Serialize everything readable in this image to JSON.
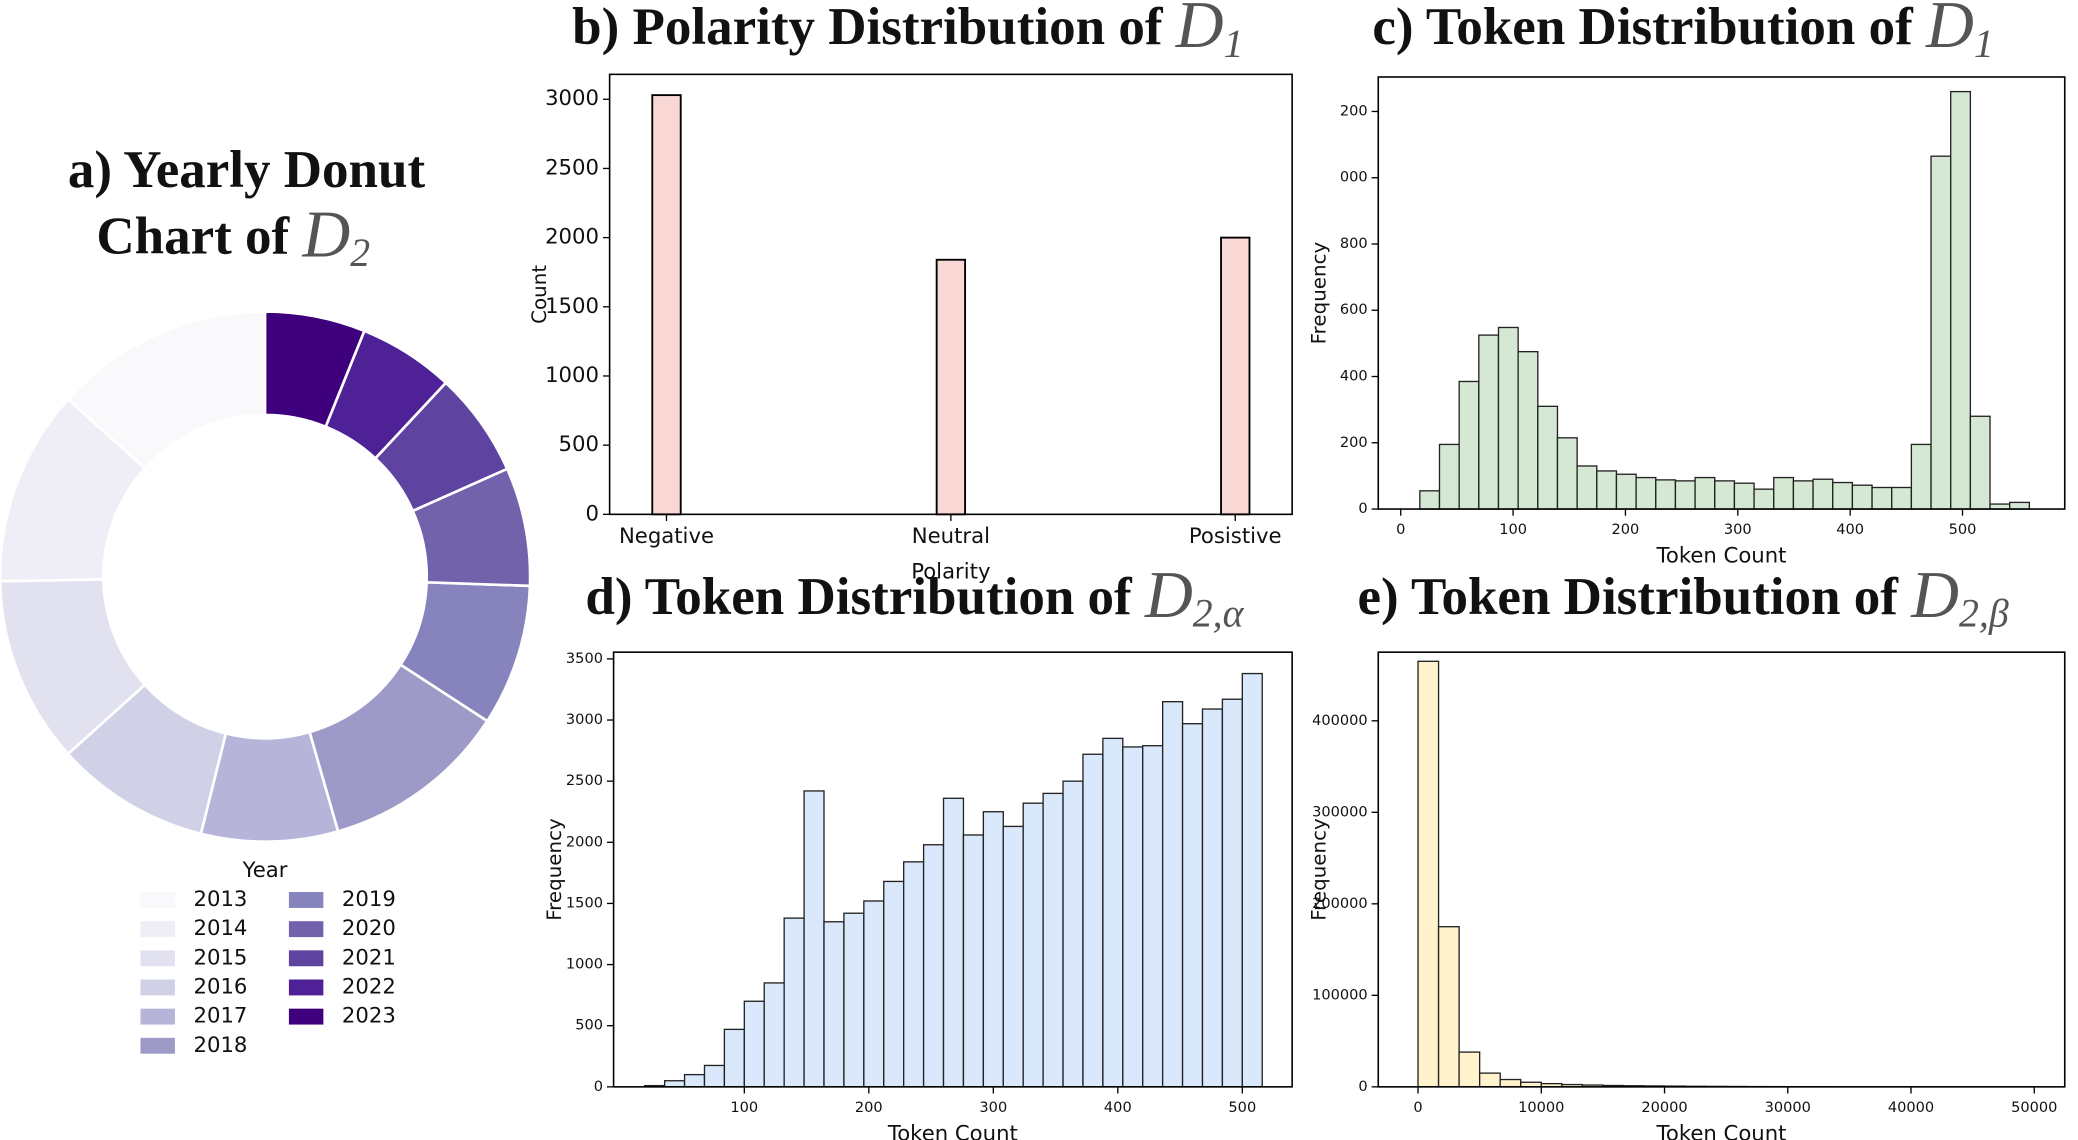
{
  "chart_data": [
    {
      "type": "pie",
      "title": [
        "a)  Yearly Donut",
        "Chart of"
      ],
      "dataset": "D",
      "title_subscript": "2",
      "categories": [
        "2013",
        "2014",
        "2015",
        "2016",
        "2017",
        "2018",
        "2019",
        "2020",
        "2021",
        "2022",
        "2023"
      ],
      "values": [
        48,
        43,
        41,
        34,
        30,
        41,
        31,
        26,
        23,
        21,
        22
      ],
      "colors": [
        "#f9f8fb",
        "#efedf5",
        "#e2e1ef",
        "#d0d1e6",
        "#b6b4d9",
        "#9e9ac8",
        "#8683bd",
        "#7261ab",
        "#5f43a0",
        "#4f2196",
        "#3f007d"
      ],
      "legend_title": "Year"
    },
    {
      "type": "bar",
      "title": "b) Polarity Distribution of",
      "dataset": "D",
      "title_subscript": "1",
      "categories": [
        "Negative",
        "Neutral",
        "Posistive"
      ],
      "values": [
        3030,
        1840,
        2000
      ],
      "color": "#f8d7d5",
      "xlabel": "Polarity",
      "ylabel": "Count",
      "ylim": [
        0,
        3180
      ],
      "yticks": [
        0,
        500,
        1000,
        1500,
        2000,
        2500,
        3000
      ]
    },
    {
      "type": "histogram",
      "title": "c) Token Distribution of",
      "dataset": "D",
      "title_subscript": "1",
      "bins": [
        17,
        34.5,
        52,
        69.5,
        87,
        104.5,
        122,
        139.5,
        157,
        174.5,
        192,
        209.5,
        227,
        244.5,
        262,
        279.5,
        297,
        314.5,
        332,
        349.5,
        367,
        384.5,
        402,
        419.5,
        437,
        454.5,
        472,
        489.5,
        507,
        524.5,
        542,
        559.5
      ],
      "values": [
        55,
        195,
        385,
        525,
        548,
        475,
        310,
        215,
        130,
        115,
        105,
        95,
        88,
        85,
        95,
        85,
        78,
        60,
        95,
        85,
        90,
        80,
        72,
        65,
        65,
        195,
        1065,
        1260,
        280,
        15,
        20
      ],
      "color": "#d5e8d4",
      "xlabel": "Token Count",
      "ylabel": "Frequency",
      "xlim": [
        -20,
        591
      ],
      "xticks": [
        0,
        100,
        200,
        300,
        400,
        500
      ],
      "ylim": [
        0,
        1304
      ],
      "yticks": [
        0,
        200,
        400,
        600,
        800,
        {
          "value": 1000,
          "label": "000"
        },
        {
          "value": 1200,
          "label": "200"
        }
      ]
    },
    {
      "type": "histogram",
      "title": "d) Token Distribution of",
      "dataset": "D",
      "title_subscript": "2,α",
      "bins": [
        20,
        36,
        52,
        68,
        84,
        100,
        116,
        132,
        148,
        164,
        180,
        196,
        212,
        228,
        244,
        260,
        276,
        292,
        308,
        324,
        340,
        356,
        372,
        388,
        404,
        420,
        436,
        452,
        468,
        484,
        500,
        516
      ],
      "values": [
        10,
        50,
        100,
        175,
        470,
        700,
        850,
        1380,
        2420,
        1350,
        1420,
        1520,
        1680,
        1840,
        1980,
        2360,
        2060,
        2250,
        2130,
        2320,
        2400,
        2500,
        2720,
        2850,
        2780,
        2790,
        3150,
        2970,
        3090,
        3170,
        3380
      ],
      "color": "#dae8fc",
      "xlabel": "Token Count",
      "ylabel": "Frequency",
      "xlim": [
        -5,
        540
      ],
      "xticks": [
        100,
        200,
        300,
        400,
        500
      ],
      "ylim": [
        0,
        3555
      ],
      "yticks": [
        0,
        500,
        1000,
        1500,
        2000,
        2500,
        3000,
        3500
      ]
    },
    {
      "type": "histogram",
      "title": "e) Token Distribution of",
      "dataset": "D",
      "title_subscript": "2,β",
      "bins": [
        0,
        1667,
        3333,
        5000,
        6667,
        8333,
        10000,
        11667,
        13333,
        15000,
        16667,
        18333,
        20000,
        21667,
        23333,
        25000,
        26667,
        28333,
        30000,
        31667,
        33333,
        35000,
        36667,
        38333,
        40000,
        41667,
        43333,
        45000,
        46667,
        48333,
        50000
      ],
      "values": [
        465000,
        175000,
        38000,
        15000,
        8000,
        5000,
        3500,
        2500,
        2000,
        1500,
        1200,
        1000,
        800,
        600,
        500,
        400,
        300,
        250,
        200,
        150,
        120,
        100,
        80,
        60,
        50,
        40,
        30,
        20,
        15,
        10
      ],
      "color": "#fff2cc",
      "xlabel": "Token Count",
      "ylabel": "Frequency",
      "xlim": [
        -3226,
        52473
      ],
      "xticks": [
        0,
        10000,
        20000,
        30000,
        40000,
        50000
      ],
      "ylim": [
        0,
        475000
      ],
      "yticks": [
        0,
        100000,
        200000,
        300000,
        400000
      ]
    }
  ]
}
